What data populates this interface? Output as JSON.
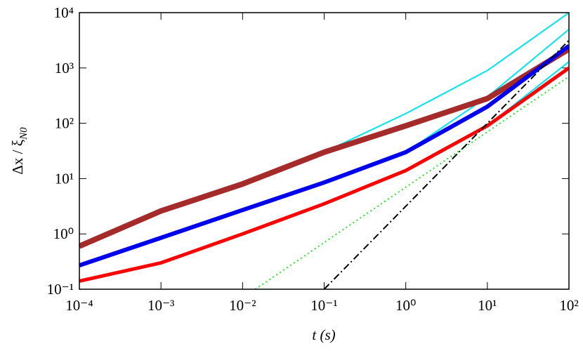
{
  "chart_data": {
    "type": "line",
    "x_label": "t  (s)",
    "y_label": "Δx / ξ",
    "y_label_subscript": "N0",
    "log_x": true,
    "log_y": true,
    "xlim": [
      0.0001,
      100
    ],
    "ylim": [
      0.1,
      10000
    ],
    "xticks": [
      {
        "value": 0.0001,
        "label": "10⁻⁴"
      },
      {
        "value": 0.001,
        "label": "10⁻³"
      },
      {
        "value": 0.01,
        "label": "10⁻²"
      },
      {
        "value": 0.1,
        "label": "10⁻¹"
      },
      {
        "value": 1,
        "label": "10⁰"
      },
      {
        "value": 10,
        "label": "10¹"
      },
      {
        "value": 100,
        "label": "10²"
      }
    ],
    "yticks": [
      {
        "value": 0.1,
        "label": "10⁻¹"
      },
      {
        "value": 1,
        "label": "10⁰"
      },
      {
        "value": 10,
        "label": "10¹"
      },
      {
        "value": 100,
        "label": "10²"
      },
      {
        "value": 1000,
        "label": "10³"
      },
      {
        "value": 10000,
        "label": "10⁴"
      }
    ],
    "series": [
      {
        "color": "#00e5ee",
        "width": 2,
        "x": [
          0.0001,
          0.001,
          0.01,
          0.1,
          1,
          10,
          100
        ],
        "values": [
          0.62,
          2.6,
          8,
          30,
          150,
          900,
          10000
        ]
      },
      {
        "color": "#00e5ee",
        "width": 2,
        "x": [
          0.0001,
          0.001,
          0.01,
          0.1,
          1,
          10,
          100
        ],
        "values": [
          0.27,
          0.85,
          2.7,
          8.5,
          30,
          300,
          5000
        ]
      },
      {
        "color": "#a52a2a",
        "width": 8,
        "x": [
          0.0001,
          0.001,
          0.01,
          0.1,
          1,
          10,
          100
        ],
        "values": [
          0.6,
          2.6,
          8,
          30,
          90,
          280,
          2200
        ]
      },
      {
        "color": "#0000ee",
        "width": 6,
        "x": [
          0.0001,
          0.001,
          0.01,
          0.1,
          1,
          10,
          100
        ],
        "values": [
          0.27,
          0.85,
          2.7,
          8.5,
          30,
          200,
          2500
        ]
      },
      {
        "color": "#00e5ee",
        "width": 2,
        "x": [
          0.0001,
          0.001,
          0.01,
          0.1,
          1,
          10,
          100
        ],
        "values": [
          0.14,
          0.3,
          1,
          3.5,
          14,
          90,
          1300
        ]
      },
      {
        "color": "#ff0000",
        "width": 5,
        "x": [
          0.0001,
          0.001,
          0.01,
          0.1,
          1,
          10,
          100
        ],
        "values": [
          0.14,
          0.3,
          1,
          3.5,
          14,
          90,
          1000
        ]
      },
      {
        "color": "#33dd33",
        "width": 2,
        "dash": "2,4",
        "x": [
          0.0143,
          100
        ],
        "values": [
          0.1,
          700
        ]
      },
      {
        "color": "#000000",
        "width": 2,
        "dash": "10,4,2,4",
        "x": [
          0.1,
          1,
          10,
          100
        ],
        "values": [
          0.1,
          3.16,
          100,
          3162
        ]
      }
    ]
  }
}
